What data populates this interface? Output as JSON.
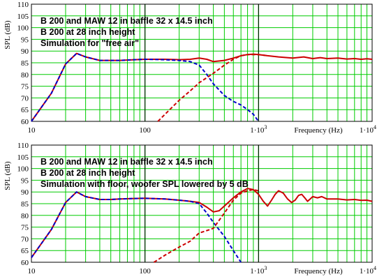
{
  "chart_data": [
    {
      "type": "line",
      "xscale": "log",
      "xlim": [
        10,
        10000
      ],
      "ylim": [
        60,
        110
      ],
      "ylabel": "SPL (dB)",
      "xlabel": "Frequency (Hz)",
      "x_tick_labels": [
        {
          "x": 10,
          "label": "10"
        },
        {
          "x": 100,
          "label": "100"
        },
        {
          "x": 1000,
          "label": "1·10",
          "sup": "3"
        },
        {
          "x": 10000,
          "label": "1·10",
          "sup": "4"
        }
      ],
      "y_ticks": [
        60,
        65,
        70,
        75,
        80,
        85,
        90,
        95,
        100,
        105,
        110
      ],
      "grid": true,
      "annotations": [
        "B 200 and MAW 12 in baffle 32 x 14.5 inch",
        "B 200 at 28 inch height",
        "Simulation for \"free air\""
      ],
      "series": [
        {
          "color": "#cc0000",
          "style": "solid",
          "x": [
            10,
            15,
            20,
            25,
            30,
            40,
            50,
            60,
            80,
            100,
            150,
            200,
            250,
            300,
            350,
            400,
            500,
            600,
            700,
            800,
            900,
            1000,
            1200,
            1500,
            2000,
            2500,
            3000,
            3500,
            4000,
            5000,
            6000,
            7000,
            8000,
            9000,
            10000
          ],
          "y": [
            60,
            72,
            84.5,
            89,
            87.5,
            86,
            86,
            86,
            86.3,
            86.5,
            86.5,
            86.3,
            86.5,
            87,
            86.5,
            85.5,
            86,
            87,
            88,
            88.5,
            88.7,
            88.5,
            88,
            87.5,
            87,
            87.5,
            86.8,
            87.2,
            86.8,
            87,
            86.6,
            86.8,
            86.5,
            86.7,
            86.5
          ]
        },
        {
          "color": "#0000cc",
          "style": "dashed",
          "x": [
            10,
            15,
            20,
            25,
            30,
            40,
            50,
            60,
            80,
            100,
            150,
            200,
            250,
            300,
            350,
            400,
            500,
            600,
            700,
            800,
            900,
            1000
          ],
          "y": [
            60,
            72,
            84.5,
            89,
            87.5,
            86,
            86,
            86,
            86.3,
            86.5,
            86.3,
            86,
            85.5,
            84,
            80,
            76,
            71,
            68.5,
            67,
            65,
            63,
            60
          ]
        },
        {
          "color": "#cc0000",
          "style": "dashed",
          "x": [
            130,
            150,
            200,
            250,
            300,
            400,
            500,
            600,
            700,
            800,
            900,
            1000,
            1200
          ],
          "y": [
            60,
            63,
            69,
            73,
            76.5,
            80.5,
            84,
            86.5,
            88,
            88.5,
            88.5,
            88.5,
            88
          ]
        }
      ],
      "markers": [
        {
          "x": 100,
          "color": "#000000"
        },
        {
          "x": 1000,
          "color": "#000000"
        }
      ]
    },
    {
      "type": "line",
      "xscale": "log",
      "xlim": [
        10,
        10000
      ],
      "ylim": [
        60,
        110
      ],
      "ylabel": "SPL (dB)",
      "xlabel": "Frequency (Hz)",
      "x_tick_labels": [
        {
          "x": 10,
          "label": "10"
        },
        {
          "x": 100,
          "label": "100"
        },
        {
          "x": 1000,
          "label": "1·10",
          "sup": "3"
        },
        {
          "x": 10000,
          "label": "1·10",
          "sup": "4"
        }
      ],
      "y_ticks": [
        60,
        65,
        70,
        75,
        80,
        85,
        90,
        95,
        100,
        105,
        110
      ],
      "grid": true,
      "annotations": [
        "B 200 and MAW 12 in baffle 32 x 14.5 inch",
        "B 200 at 28 inch height",
        "Simulation with floor, woofer SPL lowered by 5 dB"
      ],
      "series": [
        {
          "color": "#cc0000",
          "style": "solid",
          "x": [
            10,
            15,
            20,
            25,
            30,
            40,
            50,
            60,
            80,
            100,
            150,
            200,
            250,
            300,
            350,
            400,
            450,
            500,
            600,
            700,
            800,
            900,
            1000,
            1100,
            1200,
            1300,
            1400,
            1500,
            1650,
            1800,
            1950,
            2100,
            2250,
            2400,
            2550,
            2700,
            2850,
            3000,
            3300,
            3600,
            4000,
            5000,
            6000,
            7000,
            8000,
            9000,
            10000
          ],
          "y": [
            62,
            74,
            85.5,
            90,
            88,
            86.8,
            86.8,
            87,
            87.2,
            87.3,
            87,
            86.5,
            86,
            85.5,
            83.5,
            81.5,
            82,
            84,
            87.5,
            90,
            91.5,
            91,
            89,
            86,
            84,
            86.5,
            89,
            90.5,
            89.5,
            87,
            85.5,
            86.5,
            88.5,
            89,
            87.5,
            86,
            87,
            88,
            87.5,
            88,
            87,
            87,
            86.6,
            86.8,
            86.4,
            86.5,
            86
          ]
        },
        {
          "color": "#0000cc",
          "style": "dashed",
          "x": [
            10,
            15,
            20,
            25,
            30,
            40,
            50,
            60,
            80,
            100,
            150,
            200,
            250,
            300,
            350,
            400,
            500,
            600,
            700
          ],
          "y": [
            62,
            74,
            85.5,
            90,
            88,
            86.8,
            86.8,
            87,
            87.2,
            87.3,
            87,
            86.5,
            86,
            85,
            81,
            77,
            71,
            65,
            60
          ]
        },
        {
          "color": "#cc0000",
          "style": "dashed",
          "x": [
            120,
            150,
            200,
            250,
            300,
            350,
            400,
            500,
            600,
            700,
            800,
            900,
            1000
          ],
          "y": [
            60,
            63,
            66.5,
            69,
            72.5,
            73.5,
            74.5,
            81,
            86.5,
            89.5,
            90.5,
            91,
            90.5
          ]
        }
      ],
      "markers": [
        {
          "x": 100,
          "color": "#000000"
        },
        {
          "x": 1000,
          "color": "#000000"
        }
      ]
    }
  ]
}
